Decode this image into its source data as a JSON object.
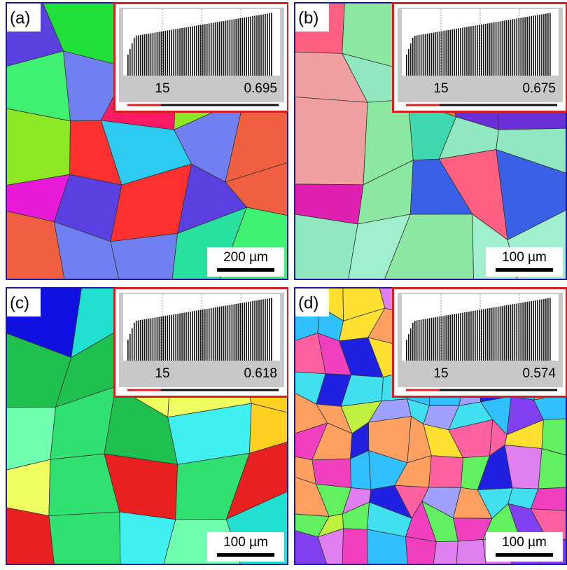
{
  "panels": [
    {
      "label": "(a)",
      "inset": {
        "left": "15",
        "right": "0.695"
      },
      "scale_bar": "200 µm"
    },
    {
      "label": "(b)",
      "inset": {
        "left": "15",
        "right": "0.675"
      },
      "scale_bar": "100 µm"
    },
    {
      "label": "(c)",
      "inset": {
        "left": "15",
        "right": "0.618"
      },
      "scale_bar": "100 µm"
    },
    {
      "label": "(d)",
      "inset": {
        "left": "15",
        "right": "0.574"
      },
      "scale_bar": "100 µm"
    }
  ]
}
